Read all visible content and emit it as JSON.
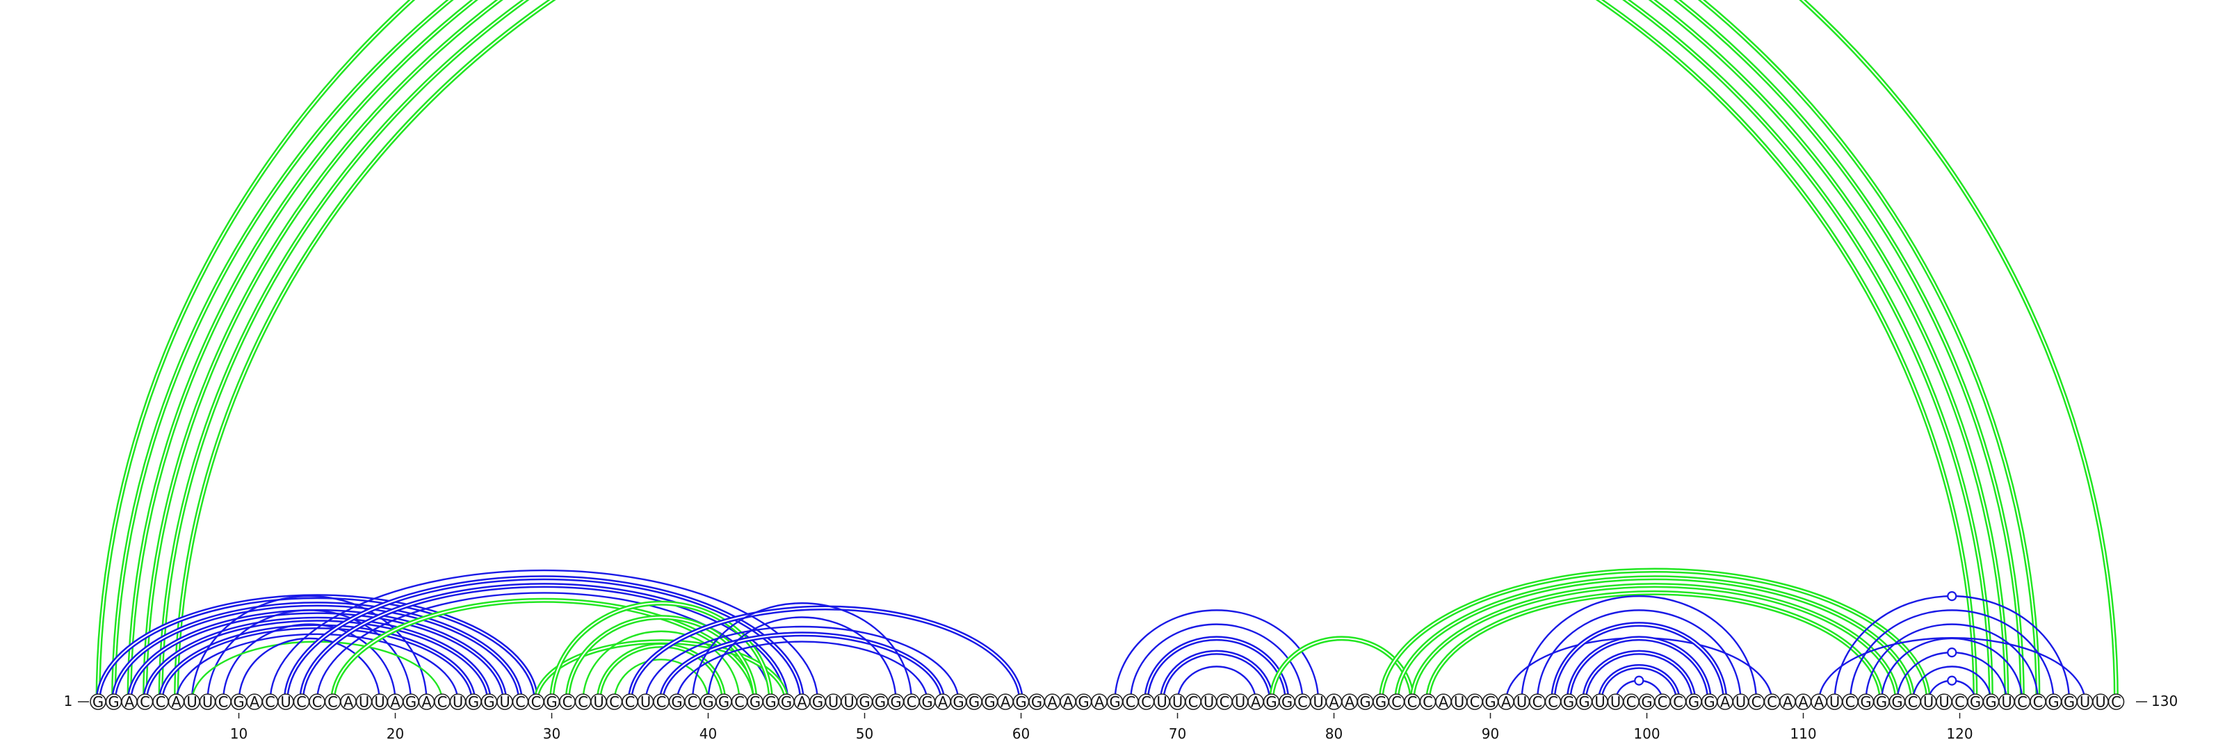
{
  "labels": {
    "start": "1",
    "end": "130"
  },
  "sequence": "GGACCAUUCGACUCCCAUUAGACUGGUCCGCCUCCUCGCGGCGGGAGUUGGGCGAGGGAGGAAGAGCCUUCUCUAGGCUAAGGCCCAUCGAUCCGGUUCGCCGGAUCCAAAUCGGGCUUCGGUCCGGUUC",
  "ticks": [
    10,
    20,
    30,
    40,
    50,
    60,
    70,
    80,
    90,
    100,
    110,
    120
  ],
  "colors": {
    "blue": "#1a1ae6",
    "green": "#22e622"
  },
  "arcs": [
    {
      "i": 1,
      "j": 130,
      "color": "green",
      "double": true
    },
    {
      "i": 2,
      "j": 125,
      "color": "green",
      "double": true
    },
    {
      "i": 3,
      "j": 124,
      "color": "green",
      "double": true
    },
    {
      "i": 4,
      "j": 123,
      "color": "green",
      "double": true
    },
    {
      "i": 5,
      "j": 122,
      "color": "green",
      "double": true
    },
    {
      "i": 6,
      "j": 121,
      "color": "green",
      "double": true
    },
    {
      "i": 1,
      "j": 29,
      "color": "blue",
      "double": true
    },
    {
      "i": 2,
      "j": 28,
      "color": "blue",
      "double": true
    },
    {
      "i": 3,
      "j": 27,
      "color": "blue",
      "double": true
    },
    {
      "i": 4,
      "j": 26,
      "color": "blue",
      "double": true
    },
    {
      "i": 5,
      "j": 25,
      "color": "blue",
      "double": true
    },
    {
      "i": 6,
      "j": 24,
      "color": "blue",
      "double": false
    },
    {
      "i": 7,
      "j": 22,
      "color": "blue",
      "double": false
    },
    {
      "i": 8,
      "j": 21,
      "color": "blue",
      "double": false
    },
    {
      "i": 9,
      "j": 20,
      "color": "blue",
      "double": false
    },
    {
      "i": 7,
      "j": 23,
      "color": "green",
      "double": false
    },
    {
      "i": 10,
      "j": 19,
      "color": "blue",
      "double": false
    },
    {
      "i": 12,
      "j": 47,
      "color": "blue",
      "double": false
    },
    {
      "i": 13,
      "j": 46,
      "color": "blue",
      "double": true
    },
    {
      "i": 14,
      "j": 45,
      "color": "blue",
      "double": true
    },
    {
      "i": 15,
      "j": 44,
      "color": "blue",
      "double": false
    },
    {
      "i": 16,
      "j": 43,
      "color": "green",
      "double": true
    },
    {
      "i": 29,
      "j": 45,
      "color": "green",
      "double": true
    },
    {
      "i": 30,
      "j": 44,
      "color": "green",
      "double": true
    },
    {
      "i": 31,
      "j": 43,
      "color": "green",
      "double": true
    },
    {
      "i": 32,
      "j": 42,
      "color": "green",
      "double": false
    },
    {
      "i": 33,
      "j": 41,
      "color": "green",
      "double": true
    },
    {
      "i": 34,
      "j": 40,
      "color": "green",
      "double": false
    },
    {
      "i": 35,
      "j": 60,
      "color": "blue",
      "double": true
    },
    {
      "i": 36,
      "j": 56,
      "color": "blue",
      "double": false
    },
    {
      "i": 37,
      "j": 55,
      "color": "blue",
      "double": true
    },
    {
      "i": 38,
      "j": 54,
      "color": "blue",
      "double": false
    },
    {
      "i": 39,
      "j": 53,
      "color": "blue",
      "double": false
    },
    {
      "i": 40,
      "j": 52,
      "color": "blue",
      "double": false
    },
    {
      "i": 66,
      "j": 79,
      "color": "blue",
      "double": false
    },
    {
      "i": 67,
      "j": 78,
      "color": "blue",
      "double": false
    },
    {
      "i": 68,
      "j": 77,
      "color": "blue",
      "double": true
    },
    {
      "i": 69,
      "j": 76,
      "color": "blue",
      "double": true
    },
    {
      "i": 70,
      "j": 75,
      "color": "blue",
      "double": false
    },
    {
      "i": 76,
      "j": 85,
      "color": "green",
      "double": true
    },
    {
      "i": 83,
      "j": 118,
      "color": "green",
      "double": true
    },
    {
      "i": 84,
      "j": 117,
      "color": "green",
      "double": true
    },
    {
      "i": 85,
      "j": 116,
      "color": "green",
      "double": true
    },
    {
      "i": 86,
      "j": 115,
      "color": "green",
      "double": true
    },
    {
      "i": 91,
      "j": 108,
      "color": "blue",
      "double": false
    },
    {
      "i": 92,
      "j": 107,
      "color": "blue",
      "double": false
    },
    {
      "i": 93,
      "j": 106,
      "color": "blue",
      "double": false
    },
    {
      "i": 94,
      "j": 105,
      "color": "blue",
      "double": true
    },
    {
      "i": 95,
      "j": 104,
      "color": "blue",
      "double": true
    },
    {
      "i": 96,
      "j": 103,
      "color": "blue",
      "double": true
    },
    {
      "i": 97,
      "j": 102,
      "color": "blue",
      "double": true
    },
    {
      "i": 98,
      "j": 101,
      "color": "blue",
      "double": false
    },
    {
      "i": 111,
      "j": 128,
      "color": "blue",
      "double": false
    },
    {
      "i": 112,
      "j": 127,
      "color": "blue",
      "double": false
    },
    {
      "i": 113,
      "j": 126,
      "color": "blue",
      "double": false
    },
    {
      "i": 114,
      "j": 125,
      "color": "blue",
      "double": false
    },
    {
      "i": 115,
      "j": 124,
      "color": "blue",
      "double": false
    },
    {
      "i": 116,
      "j": 123,
      "color": "blue",
      "double": false
    },
    {
      "i": 117,
      "j": 122,
      "color": "blue",
      "double": false
    },
    {
      "i": 118,
      "j": 121,
      "color": "blue",
      "double": false
    }
  ],
  "markers": [
    {
      "at": 99.5,
      "arc_rank": 0
    },
    {
      "at": 119.5,
      "arc_rank": 0
    },
    {
      "at": 119.5,
      "arc_rank": 2
    },
    {
      "at": 119.5,
      "arc_rank": 6
    }
  ]
}
